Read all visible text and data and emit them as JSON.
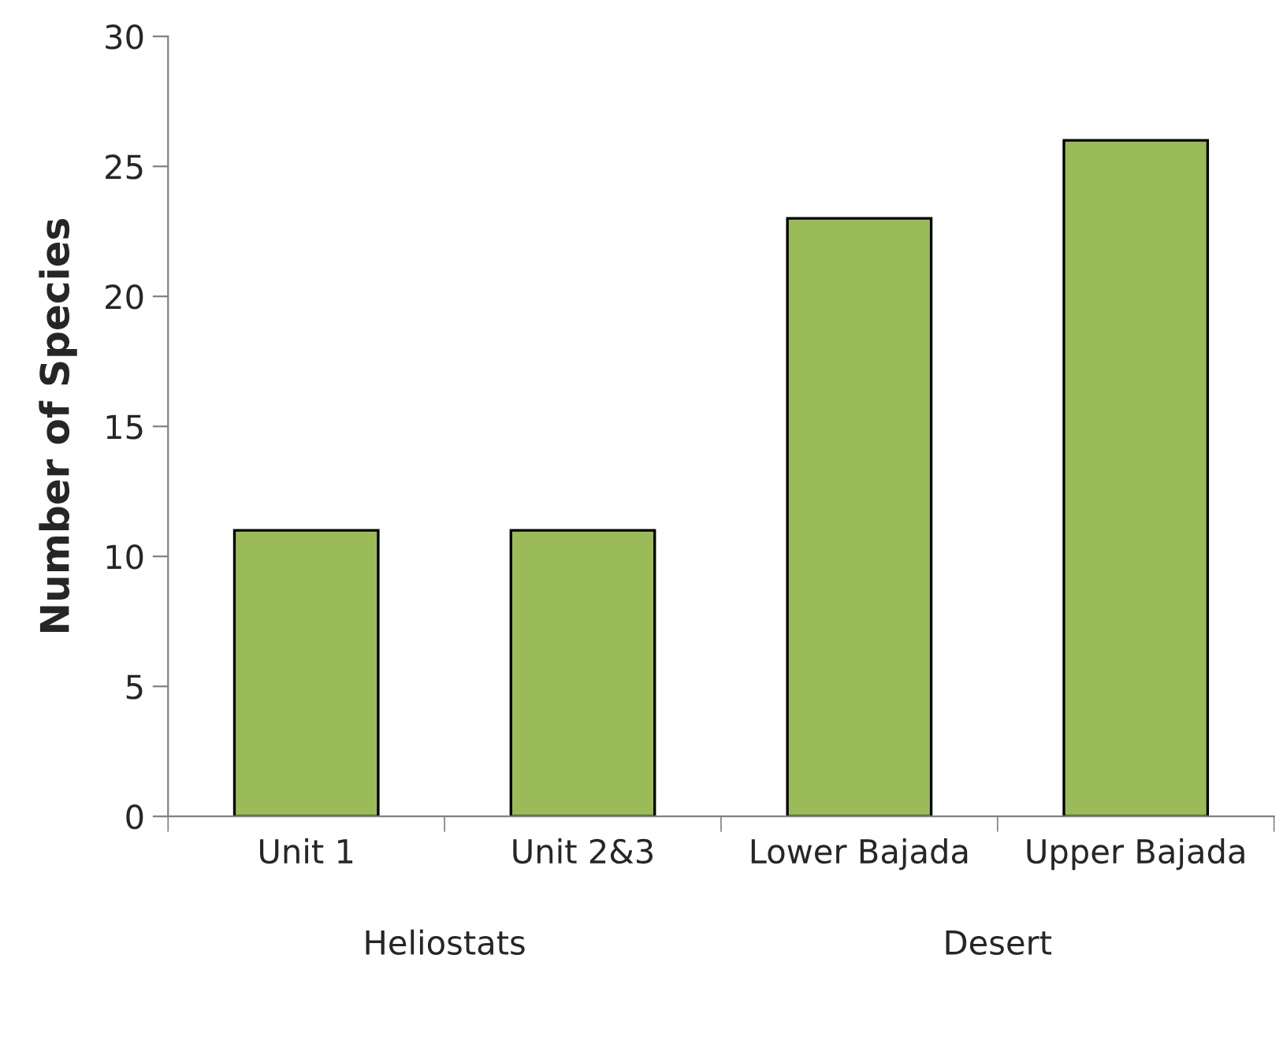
{
  "chart_data": {
    "type": "bar",
    "ylabel": "Number of Species",
    "categories": [
      "Unit 1",
      "Unit 2&3",
      "Lower Bajada",
      "Upper Bajada"
    ],
    "values": [
      11,
      11,
      23,
      26
    ],
    "color": "#9bbb59",
    "ylim": [
      0,
      30
    ],
    "yticks": [
      0,
      5,
      10,
      15,
      20,
      25,
      30
    ],
    "grid": false,
    "legend": false,
    "annotations": [
      "Heliostats",
      "Desert"
    ]
  }
}
